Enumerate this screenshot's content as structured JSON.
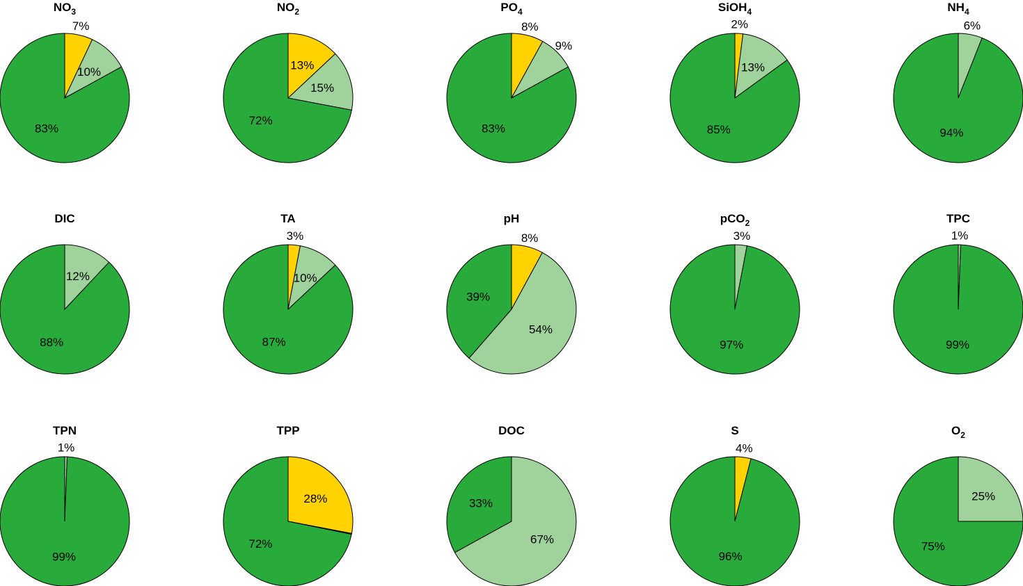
{
  "chart_data": {
    "type": "pie",
    "colors": [
      "#FFD200",
      "#A0D39C",
      "#28AB3A"
    ],
    "start_angle": "12 o'clock, clockwise",
    "pies": [
      {
        "title": "NO",
        "sub": "3",
        "values": [
          7,
          10,
          83
        ],
        "labels": [
          "7%",
          "10%",
          "83%"
        ]
      },
      {
        "title": "NO",
        "sub": "2",
        "values": [
          13,
          15,
          72
        ],
        "labels": [
          "13%",
          "15%",
          "72%"
        ]
      },
      {
        "title": "PO",
        "sub": "4",
        "values": [
          8,
          9,
          83
        ],
        "labels": [
          "8%",
          "9%",
          "83%"
        ]
      },
      {
        "title": "SiOH",
        "sub": "4",
        "values": [
          2,
          13,
          85
        ],
        "labels": [
          "2%",
          "13%",
          "85%"
        ]
      },
      {
        "title": "NH",
        "sub": "4",
        "values": [
          0,
          6,
          94
        ],
        "labels": [
          "",
          "6%",
          "94%"
        ]
      },
      {
        "title": "DIC",
        "sub": "",
        "values": [
          0,
          12,
          88
        ],
        "labels": [
          "",
          "12%",
          "88%"
        ]
      },
      {
        "title": "TA",
        "sub": "",
        "values": [
          3,
          10,
          87
        ],
        "labels": [
          "3%",
          "10%",
          "87%"
        ]
      },
      {
        "title": "pH",
        "sub": "",
        "values": [
          8,
          54,
          39
        ],
        "labels": [
          "8%",
          "54%",
          "39%"
        ]
      },
      {
        "title": "pCO",
        "sub": "2",
        "values": [
          0,
          3,
          97
        ],
        "labels": [
          "",
          "3%",
          "97%"
        ]
      },
      {
        "title": "TPC",
        "sub": "",
        "values": [
          0,
          0.6,
          99.4
        ],
        "labels": [
          "",
          "1%",
          "99%"
        ]
      },
      {
        "title": "TPN",
        "sub": "",
        "values": [
          0,
          0.6,
          99.4
        ],
        "labels": [
          "",
          "1%",
          "99%"
        ]
      },
      {
        "title": "TPP",
        "sub": "",
        "values": [
          28,
          0.2,
          71.8
        ],
        "labels": [
          "28%",
          "",
          "72%"
        ]
      },
      {
        "title": "DOC",
        "sub": "",
        "values": [
          0,
          67,
          33
        ],
        "labels": [
          "",
          "67%",
          "33%"
        ]
      },
      {
        "title": "S",
        "sub": "",
        "values": [
          4,
          0,
          96
        ],
        "labels": [
          "4%",
          "",
          "96%"
        ]
      },
      {
        "title": "O",
        "sub": "2",
        "values": [
          0,
          25,
          75
        ],
        "labels": [
          "",
          "25%",
          "75%"
        ]
      }
    ]
  }
}
